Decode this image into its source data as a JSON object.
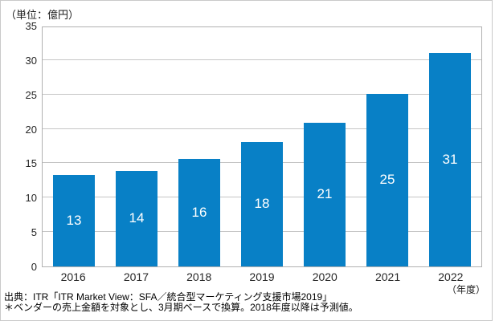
{
  "chart": {
    "unit_label": "（単位：億円）",
    "xaxis_unit": "（年度）"
  },
  "chart_data": {
    "type": "bar",
    "categories": [
      "2016",
      "2017",
      "2018",
      "2019",
      "2020",
      "2021",
      "2022"
    ],
    "values": [
      13.3,
      13.9,
      15.6,
      18.1,
      20.9,
      25.1,
      31.0
    ],
    "bar_labels": [
      "13",
      "14",
      "16",
      "18",
      "21",
      "25",
      "31"
    ],
    "title": "",
    "xlabel": "（年度）",
    "ylabel": "（単位：億円）",
    "ylim": [
      0,
      35
    ],
    "ytick_step": 5,
    "ytick_labels": [
      "0",
      "5",
      "10",
      "15",
      "20",
      "25",
      "30",
      "35"
    ],
    "grid": "horizontal",
    "legend": "none",
    "bar_color": "#0880c6",
    "bar_label_color": "#ffffff",
    "gridline_color": "#c5c5c5",
    "frame_color": "#b0b0b0"
  },
  "footer": {
    "source_line1": "出典：ITR「ITR Market View：SFA／統合型マーケティング支援市場2019」",
    "source_line2": "＊ベンダーの売上金額を対象とし、3月期ベースで換算。2018年度以降は予測値。"
  }
}
